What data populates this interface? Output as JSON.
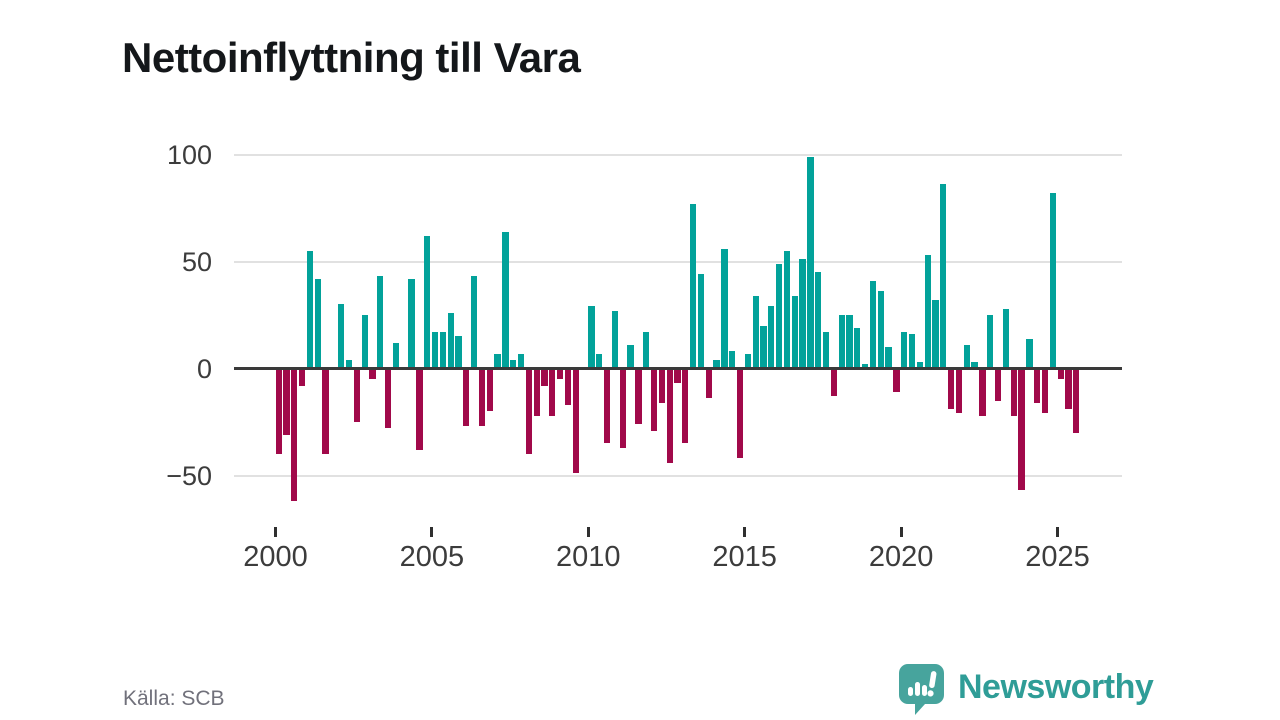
{
  "title": "Nettoinflyttning till Vara",
  "source": "Källa: SCB",
  "logo": {
    "text": "Newsworthy"
  },
  "chart_data": {
    "type": "bar",
    "title": "Nettoinflyttning till Vara",
    "xlabel": "",
    "ylabel": "",
    "ylim": [
      -70,
      110
    ],
    "yticks": [
      100,
      50,
      0,
      -50
    ],
    "ytick_labels": [
      "100",
      "50",
      "0",
      "−50"
    ],
    "xticks": [
      2000,
      2005,
      2010,
      2015,
      2020,
      2025
    ],
    "grid": true,
    "legend": "none",
    "colors": {
      "positive": "#02a29a",
      "negative": "#a1094a"
    },
    "x": [
      "2000Q1",
      "2000Q2",
      "2000Q3",
      "2000Q4",
      "2001Q1",
      "2001Q2",
      "2001Q3",
      "2001Q4",
      "2002Q1",
      "2002Q2",
      "2002Q3",
      "2002Q4",
      "2003Q1",
      "2003Q2",
      "2003Q3",
      "2003Q4",
      "2004Q1",
      "2004Q2",
      "2004Q3",
      "2004Q4",
      "2005Q1",
      "2005Q2",
      "2005Q3",
      "2005Q4",
      "2006Q1",
      "2006Q2",
      "2006Q3",
      "2006Q4",
      "2007Q1",
      "2007Q2",
      "2007Q3",
      "2007Q4",
      "2008Q1",
      "2008Q2",
      "2008Q3",
      "2008Q4",
      "2009Q1",
      "2009Q2",
      "2009Q3",
      "2009Q4",
      "2010Q1",
      "2010Q2",
      "2010Q3",
      "2010Q4",
      "2011Q1",
      "2011Q2",
      "2011Q3",
      "2011Q4",
      "2012Q1",
      "2012Q2",
      "2012Q3",
      "2012Q4",
      "2013Q1",
      "2013Q2",
      "2013Q3",
      "2013Q4",
      "2014Q1",
      "2014Q2",
      "2014Q3",
      "2014Q4",
      "2015Q1",
      "2015Q2",
      "2015Q3",
      "2015Q4",
      "2016Q1",
      "2016Q2",
      "2016Q3",
      "2016Q4",
      "2017Q1",
      "2017Q2",
      "2017Q3",
      "2017Q4",
      "2018Q1",
      "2018Q2",
      "2018Q3",
      "2018Q4",
      "2019Q1",
      "2019Q2",
      "2019Q3",
      "2019Q4",
      "2020Q1",
      "2020Q2",
      "2020Q3",
      "2020Q4",
      "2021Q1",
      "2021Q2",
      "2021Q3",
      "2021Q4",
      "2022Q1",
      "2022Q2",
      "2022Q3",
      "2022Q4",
      "2023Q1",
      "2023Q2",
      "2023Q3",
      "2023Q4",
      "2024Q1",
      "2024Q2",
      "2024Q3",
      "2024Q4",
      "2025Q1",
      "2025Q2",
      "2025Q3"
    ],
    "values": [
      -40,
      -31,
      -62,
      -8,
      55,
      42,
      -40,
      0,
      30,
      4,
      -25,
      25,
      -5,
      43,
      -28,
      12,
      0,
      42,
      -38,
      62,
      17,
      17,
      26,
      15,
      -27,
      43,
      -27,
      -20,
      7,
      64,
      4,
      7,
      -40,
      -22,
      -8,
      -22,
      -5,
      -17,
      -49,
      0,
      29,
      7,
      -35,
      27,
      -37,
      11,
      -26,
      17,
      -29,
      -16,
      -44,
      -7,
      -35,
      77,
      44,
      -14,
      4,
      56,
      8,
      -42,
      7,
      34,
      20,
      29,
      49,
      55,
      34,
      51,
      99,
      45,
      17,
      -13,
      25,
      25,
      19,
      2,
      41,
      36,
      10,
      -11,
      17,
      16,
      3,
      53,
      32,
      86,
      -19,
      -21,
      11,
      3,
      -22,
      25,
      -15,
      28,
      -22,
      -57,
      14,
      -16,
      -21,
      82,
      -5,
      -19,
      -30
    ]
  }
}
